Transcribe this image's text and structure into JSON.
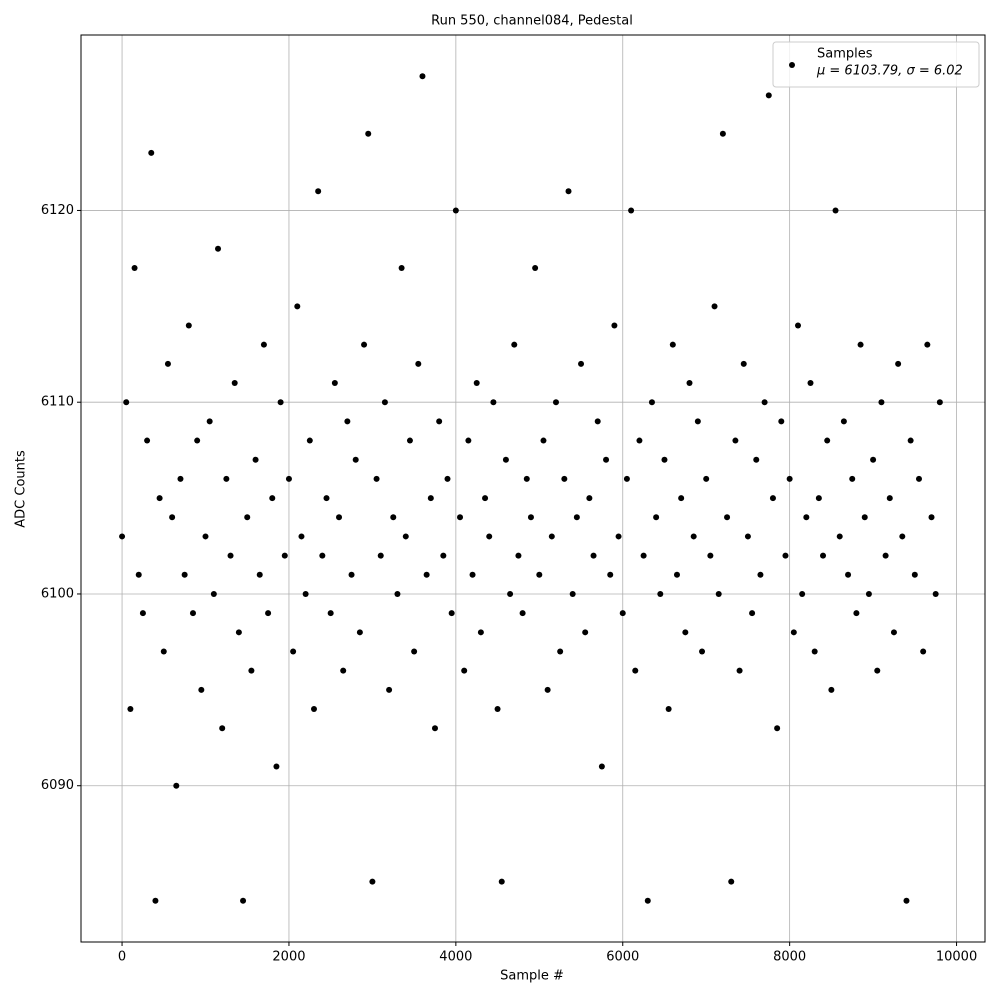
{
  "chart_data": {
    "type": "scatter",
    "title": "Run 550, channel084, Pedestal",
    "x_label": "Sample #",
    "y_label": "ADC Counts",
    "xlim": [
      -492,
      10341
    ],
    "ylim": [
      6081.85,
      6129.15
    ],
    "xticks": [
      0,
      2000,
      4000,
      6000,
      8000,
      10000
    ],
    "yticks": [
      6090,
      6100,
      6110,
      6120
    ],
    "grid": true,
    "legend": "upper right",
    "legend_stats": "μ = 6103.79, σ = 6.02",
    "x": [
      0,
      50,
      100,
      150,
      200,
      250,
      300,
      350,
      400,
      450,
      500,
      550,
      600,
      650,
      700,
      750,
      800,
      850,
      900,
      950,
      1000,
      1050,
      1100,
      1150,
      1200,
      1250,
      1300,
      1350,
      1400,
      1450,
      1500,
      1550,
      1600,
      1650,
      1700,
      1750,
      1800,
      1850,
      1900,
      1950,
      2000,
      2050,
      2100,
      2150,
      2200,
      2250,
      2300,
      2350,
      2400,
      2450,
      2500,
      2550,
      2600,
      2650,
      2700,
      2750,
      2800,
      2850,
      2900,
      2950,
      3000,
      3050,
      3100,
      3150,
      3200,
      3250,
      3300,
      3350,
      3400,
      3450,
      3500,
      3550,
      3600,
      3650,
      3700,
      3750,
      3800,
      3850,
      3900,
      3950,
      4000,
      4050,
      4100,
      4150,
      4200,
      4250,
      4300,
      4350,
      4400,
      4450,
      4500,
      4550,
      4600,
      4650,
      4700,
      4750,
      4800,
      4850,
      4900,
      4950,
      5000,
      5050,
      5100,
      5150,
      5200,
      5250,
      5300,
      5350,
      5400,
      5450,
      5500,
      5550,
      5600,
      5650,
      5700,
      5750,
      5800,
      5850,
      5900,
      5950,
      6000,
      6050,
      6100,
      6150,
      6200,
      6250,
      6300,
      6350,
      6400,
      6450,
      6500,
      6550,
      6600,
      6650,
      6700,
      6750,
      6800,
      6850,
      6900,
      6950,
      7000,
      7050,
      7100,
      7150,
      7200,
      7250,
      7300,
      7350,
      7400,
      7450,
      7500,
      7550,
      7600,
      7650,
      7700,
      7750,
      7800,
      7850,
      7900,
      7950,
      8000,
      8050,
      8100,
      8150,
      8200,
      8250,
      8300,
      8350,
      8400,
      8450,
      8500,
      8550,
      8600,
      8650,
      8700,
      8750,
      8800,
      8850,
      8900,
      8950,
      9000,
      9050,
      9100,
      9150,
      9200,
      9250,
      9300,
      9350,
      9400,
      9450,
      9500,
      9550,
      9600,
      9650,
      9700,
      9750,
      9800
    ],
    "series": [
      {
        "name": "Samples",
        "color": "#000000",
        "values": [
          6103,
          6110,
          6094,
          6117,
          6101,
          6099,
          6108,
          6123,
          6084,
          6105,
          6097,
          6112,
          6104,
          6090,
          6106,
          6101,
          6114,
          6099,
          6108,
          6095,
          6103,
          6109,
          6100,
          6118,
          6093,
          6106,
          6102,
          6111,
          6098,
          6084,
          6104,
          6096,
          6107,
          6101,
          6113,
          6099,
          6105,
          6091,
          6110,
          6102,
          6106,
          6097,
          6115,
          6103,
          6100,
          6108,
          6094,
          6121,
          6102,
          6105,
          6099,
          6111,
          6104,
          6096,
          6109,
          6101,
          6107,
          6098,
          6113,
          6124,
          6085,
          6106,
          6102,
          6110,
          6095,
          6104,
          6100,
          6117,
          6103,
          6108,
          6097,
          6112,
          6127,
          6101,
          6105,
          6093,
          6109,
          6102,
          6106,
          6099,
          6120,
          6104,
          6096,
          6108,
          6101,
          6111,
          6098,
          6105,
          6103,
          6110,
          6094,
          6085,
          6107,
          6100,
          6113,
          6102,
          6099,
          6106,
          6104,
          6117,
          6101,
          6108,
          6095,
          6103,
          6110,
          6097,
          6106,
          6121,
          6100,
          6104,
          6112,
          6098,
          6105,
          6102,
          6109,
          6091,
          6107,
          6101,
          6114,
          6103,
          6099,
          6106,
          6120,
          6096,
          6108,
          6102,
          6084,
          6110,
          6104,
          6100,
          6107,
          6094,
          6113,
          6101,
          6105,
          6098,
          6111,
          6103,
          6109,
          6097,
          6106,
          6102,
          6115,
          6100,
          6124,
          6104,
          6085,
          6108,
          6096,
          6112,
          6103,
          6099,
          6107,
          6101,
          6110,
          6126,
          6105,
          6093,
          6109,
          6102,
          6106,
          6098,
          6114,
          6100,
          6104,
          6111,
          6097,
          6105,
          6102,
          6108,
          6095,
          6120,
          6103,
          6109,
          6101,
          6106,
          6099,
          6113,
          6104,
          6100,
          6107,
          6096,
          6110,
          6102,
          6105,
          6098,
          6112,
          6103,
          6084,
          6108,
          6101,
          6106,
          6097,
          6113,
          6104,
          6100,
          6110
        ]
      }
    ]
  }
}
